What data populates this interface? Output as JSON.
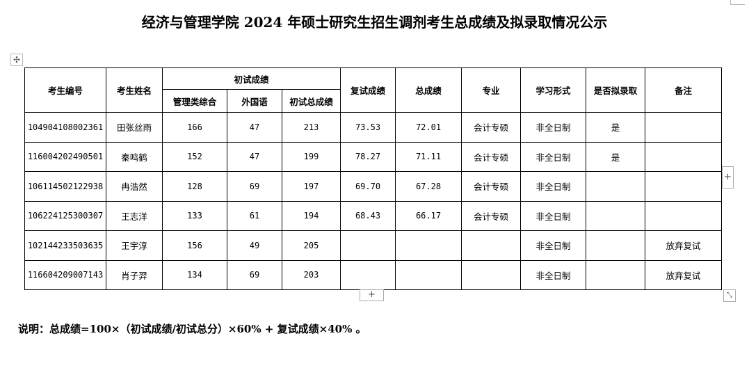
{
  "title": "经济与管理学院 2024 年硕士研究生招生调剂考生总成绩及拟录取情况公示",
  "headers": {
    "id": "考生编号",
    "name": "考生姓名",
    "prelim": "初试成绩",
    "mgmt": "管理类综合",
    "lang": "外国语",
    "prelim_total": "初试总成绩",
    "retest": "复试成绩",
    "total": "总成绩",
    "major": "专业",
    "mode": "学习形式",
    "admit": "是否拟录取",
    "remark": "备注"
  },
  "rows": [
    {
      "id": "104904108002361",
      "name": "田张丝雨",
      "mgmt": "166",
      "lang": "47",
      "prelim_total": "213",
      "retest": "73.53",
      "total": "72.01",
      "major": "会计专硕",
      "mode": "非全日制",
      "admit": "是",
      "remark": ""
    },
    {
      "id": "116004202490501",
      "name": "秦鸣鹤",
      "mgmt": "152",
      "lang": "47",
      "prelim_total": "199",
      "retest": "78.27",
      "total": "71.11",
      "major": "会计专硕",
      "mode": "非全日制",
      "admit": "是",
      "remark": ""
    },
    {
      "id": "106114502122938",
      "name": "冉浩然",
      "mgmt": "128",
      "lang": "69",
      "prelim_total": "197",
      "retest": "69.70",
      "total": "67.28",
      "major": "会计专硕",
      "mode": "非全日制",
      "admit": "",
      "remark": ""
    },
    {
      "id": "106224125300307",
      "name": "王志洋",
      "mgmt": "133",
      "lang": "61",
      "prelim_total": "194",
      "retest": "68.43",
      "total": "66.17",
      "major": "会计专硕",
      "mode": "非全日制",
      "admit": "",
      "remark": ""
    },
    {
      "id": "102144233503635",
      "name": "王宇淳",
      "mgmt": "156",
      "lang": "49",
      "prelim_total": "205",
      "retest": "",
      "total": "",
      "major": "",
      "mode": "非全日制",
      "admit": "",
      "remark": "放弃复试"
    },
    {
      "id": "116604209007143",
      "name": "肖子羿",
      "mgmt": "134",
      "lang": "69",
      "prelim_total": "203",
      "retest": "",
      "total": "",
      "major": "",
      "mode": "非全日制",
      "admit": "",
      "remark": "放弃复试"
    }
  ],
  "note": "说明：总成绩=100×（初试成绩/初试总分）×60% + 复试成绩×40% 。",
  "controls": {
    "move": "✣",
    "add": "+",
    "resize": "⤡"
  }
}
